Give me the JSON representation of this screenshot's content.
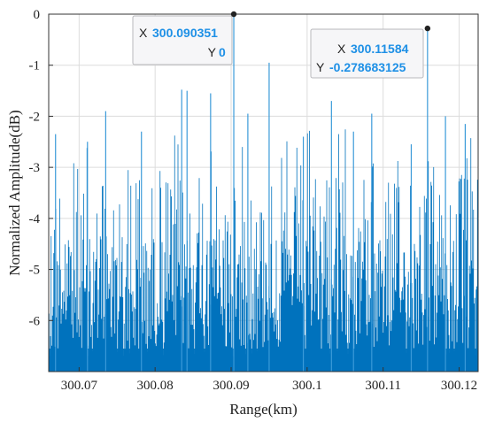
{
  "chart_data": {
    "type": "line",
    "title": "",
    "xlabel": "Range(km)",
    "ylabel": "Normalized Amplitude(dB)",
    "xlim": [
      300.066,
      300.1225
    ],
    "ylim": [
      -7,
      0
    ],
    "x_ticks": [
      {
        "value": 300.07,
        "label": "300.07"
      },
      {
        "value": 300.08,
        "label": "300.08"
      },
      {
        "value": 300.09,
        "label": "300.09"
      },
      {
        "value": 300.1,
        "label": "300.1"
      },
      {
        "value": 300.11,
        "label": "300.11"
      },
      {
        "value": 300.12,
        "label": "300.12"
      }
    ],
    "y_ticks": [
      {
        "value": 0,
        "label": "0"
      },
      {
        "value": -1,
        "label": "-1"
      },
      {
        "value": -2,
        "label": "-2"
      },
      {
        "value": -3,
        "label": "-3"
      },
      {
        "value": -4,
        "label": "-4"
      },
      {
        "value": -5,
        "label": "-5"
      },
      {
        "value": -6,
        "label": "-6"
      }
    ],
    "grid": true,
    "series_color": "#0072bd",
    "series": [
      {
        "values_note_free": true,
        "peaks": [
          {
            "x": 300.090351,
            "y": 0
          },
          {
            "x": 300.11584,
            "y": -0.278683125
          },
          {
            "x": 300.095,
            "y": -0.95
          },
          {
            "x": 300.0835,
            "y": -1.48
          },
          {
            "x": 300.0842,
            "y": -1.5
          },
          {
            "x": 300.0873,
            "y": -1.55
          },
          {
            "x": 300.0735,
            "y": -1.9
          },
          {
            "x": 300.1085,
            "y": -1.95
          },
          {
            "x": 300.0922,
            "y": -1.95
          },
          {
            "x": 300.1032,
            "y": -1.7
          },
          {
            "x": 300.1208,
            "y": -2.15
          },
          {
            "x": 300.1061,
            "y": -2.3
          },
          {
            "x": 300.0782,
            "y": -2.3
          },
          {
            "x": 300.0669,
            "y": -2.35
          },
          {
            "x": 300.1182,
            "y": -2.0
          },
          {
            "x": 300.0995,
            "y": -2.4
          },
          {
            "x": 300.0711,
            "y": -2.5
          },
          {
            "x": 300.1137,
            "y": -2.55
          }
        ]
      }
    ],
    "data_tips": [
      {
        "x_label": "X",
        "x_value": "300.090351",
        "y_label": "Y",
        "y_value": "0"
      },
      {
        "x_label": "X",
        "x_value": "300.11584",
        "y_label": "Y",
        "y_value": "-0.278683125"
      }
    ]
  }
}
